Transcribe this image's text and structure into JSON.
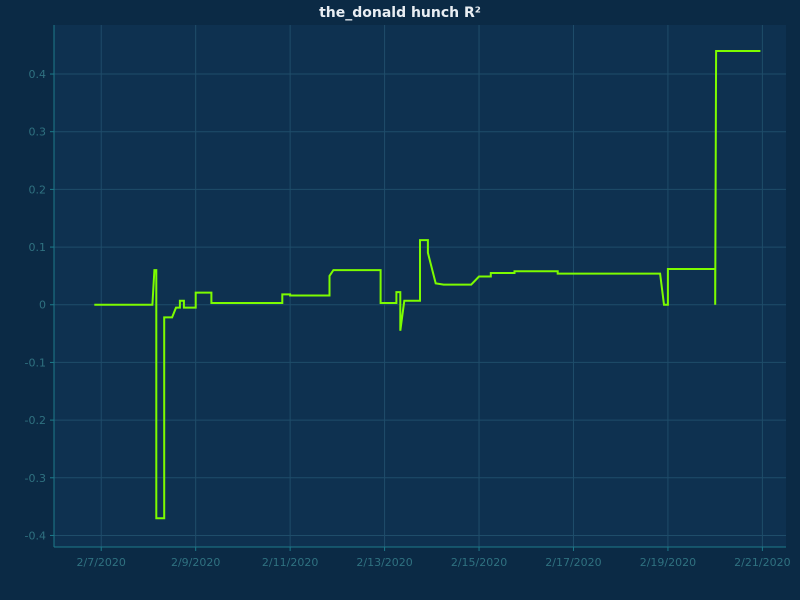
{
  "chart_data": {
    "type": "line",
    "title": "the_donald hunch R²",
    "xlabel": "",
    "ylabel": "",
    "x_axis_type": "date",
    "xlim": [
      "2020-02-06",
      "2020-02-21T12:00"
    ],
    "ylim": [
      -0.42,
      0.485
    ],
    "grid": true,
    "line_style": "step",
    "colors": {
      "background": "#0b2a45",
      "plot_background": "#0e3150",
      "grid": "#1f4d6a",
      "axis": "#1d7a8a",
      "tick_text": "#2f7180",
      "title": "#e9eef3",
      "series": "#7cfc00"
    },
    "x_ticks": [
      {
        "value": "2020-02-07",
        "label": "2/7/2020"
      },
      {
        "value": "2020-02-09",
        "label": "2/9/2020"
      },
      {
        "value": "2020-02-11",
        "label": "2/11/2020"
      },
      {
        "value": "2020-02-13",
        "label": "2/13/2020"
      },
      {
        "value": "2020-02-15",
        "label": "2/15/2020"
      },
      {
        "value": "2020-02-17",
        "label": "2/17/2020"
      },
      {
        "value": "2020-02-19",
        "label": "2/19/2020"
      },
      {
        "value": "2020-02-21",
        "label": "2/21/2020"
      }
    ],
    "y_ticks": [
      {
        "value": 0.4,
        "label": "0.4"
      },
      {
        "value": 0.3,
        "label": "0.3"
      },
      {
        "value": 0.2,
        "label": "0.2"
      },
      {
        "value": 0.1,
        "label": "0.1"
      },
      {
        "value": 0,
        "label": "0"
      },
      {
        "value": -0.1,
        "label": "-0.1"
      },
      {
        "value": -0.2,
        "label": "-0.2"
      },
      {
        "value": -0.3,
        "label": "-0.3"
      },
      {
        "value": -0.4,
        "label": "-0.4"
      }
    ],
    "series": [
      {
        "color": "#7cfc00",
        "points": [
          [
            "2020-02-06T20:30",
            0.0
          ],
          [
            "2020-02-08T02:00",
            0.0
          ],
          [
            "2020-02-08T03:00",
            0.06
          ],
          [
            "2020-02-08T04:00",
            0.06
          ],
          [
            "2020-02-08T04:00",
            -0.37
          ],
          [
            "2020-02-08T08:00",
            -0.37
          ],
          [
            "2020-02-08T08:00",
            -0.022
          ],
          [
            "2020-02-08T12:00",
            -0.022
          ],
          [
            "2020-02-08T14:00",
            -0.005
          ],
          [
            "2020-02-08T16:00",
            -0.005
          ],
          [
            "2020-02-08T16:00",
            0.007
          ],
          [
            "2020-02-08T18:00",
            0.007
          ],
          [
            "2020-02-08T18:00",
            -0.005
          ],
          [
            "2020-02-09T00:00",
            -0.005
          ],
          [
            "2020-02-09T00:00",
            0.021
          ],
          [
            "2020-02-09T08:00",
            0.021
          ],
          [
            "2020-02-09T08:00",
            0.003
          ],
          [
            "2020-02-10T20:00",
            0.003
          ],
          [
            "2020-02-10T20:00",
            0.018
          ],
          [
            "2020-02-11T00:00",
            0.018
          ],
          [
            "2020-02-11T00:00",
            0.016
          ],
          [
            "2020-02-11T20:00",
            0.016
          ],
          [
            "2020-02-11T20:00",
            0.05
          ],
          [
            "2020-02-11T22:00",
            0.06
          ],
          [
            "2020-02-12T22:00",
            0.06
          ],
          [
            "2020-02-12T22:00",
            0.003
          ],
          [
            "2020-02-13T06:00",
            0.003
          ],
          [
            "2020-02-13T06:00",
            0.022
          ],
          [
            "2020-02-13T08:00",
            0.022
          ],
          [
            "2020-02-13T08:00",
            -0.045
          ],
          [
            "2020-02-13T10:00",
            0.007
          ],
          [
            "2020-02-13T18:00",
            0.007
          ],
          [
            "2020-02-13T18:00",
            0.112
          ],
          [
            "2020-02-13T22:00",
            0.112
          ],
          [
            "2020-02-13T22:00",
            0.09
          ],
          [
            "2020-02-14T02:00",
            0.037
          ],
          [
            "2020-02-14T06:00",
            0.035
          ],
          [
            "2020-02-14T20:00",
            0.035
          ],
          [
            "2020-02-15T00:00",
            0.049
          ],
          [
            "2020-02-15T06:00",
            0.049
          ],
          [
            "2020-02-15T06:00",
            0.055
          ],
          [
            "2020-02-15T18:00",
            0.055
          ],
          [
            "2020-02-15T18:00",
            0.058
          ],
          [
            "2020-02-16T16:00",
            0.058
          ],
          [
            "2020-02-16T16:00",
            0.054
          ],
          [
            "2020-02-18T20:00",
            0.054
          ],
          [
            "2020-02-18T22:00",
            0.0
          ],
          [
            "2020-02-19T00:00",
            0.0
          ],
          [
            "2020-02-19T00:00",
            0.062
          ],
          [
            "2020-02-20T00:00",
            0.062
          ],
          [
            "2020-02-20T00:00",
            0.0
          ],
          [
            "2020-02-20T00:30",
            0.44
          ],
          [
            "2020-02-20T23:00",
            0.44
          ]
        ]
      }
    ]
  }
}
